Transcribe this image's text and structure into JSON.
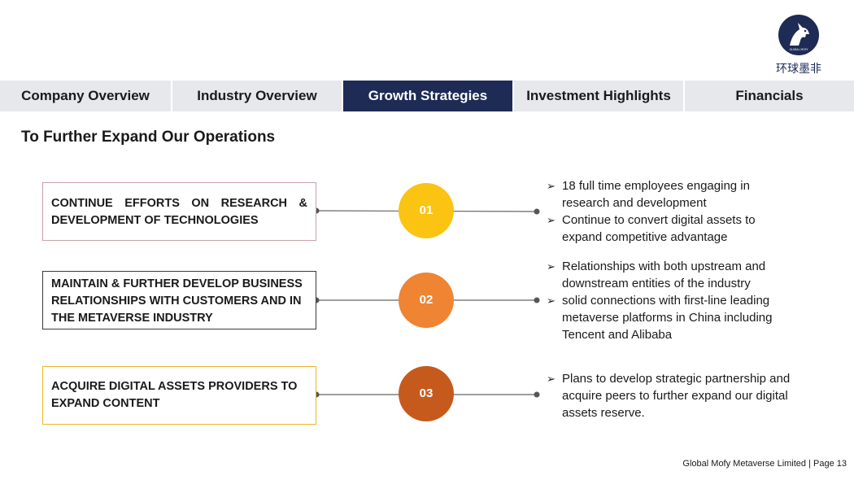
{
  "logo": {
    "cn_text": "环球墨非",
    "emblem_text": "GLOBAL MOFY"
  },
  "nav": {
    "tabs": [
      {
        "label": "Company Overview",
        "active": false
      },
      {
        "label": "Industry Overview",
        "active": false
      },
      {
        "label": "Growth Strategies",
        "active": true
      },
      {
        "label": "Investment Highlights",
        "active": false
      },
      {
        "label": "Financials",
        "active": false
      }
    ]
  },
  "title": "To Further Expand Our Operations",
  "strategies": [
    {
      "box_text": "CONTINUE EFFORTS ON RESEARCH & DEVELOPMENT OF TECHNOLOGIES",
      "number": "01",
      "color": "#fbc312",
      "bullets": [
        "18 full time employees engaging in research and development",
        "Continue to convert digital assets to expand competitive advantage"
      ]
    },
    {
      "box_text": "MAINTAIN & FURTHER DEVELOP BUSINESS RELATIONSHIPS WITH CUSTOMERS AND IN THE METAVERSE INDUSTRY",
      "number": "02",
      "color": "#ef8433",
      "bullets": [
        "Relationships with both upstream and downstream entities of the industry",
        "solid connections with first-line leading metaverse platforms in China including Tencent and Alibaba"
      ]
    },
    {
      "box_text": "ACQUIRE DIGITAL ASSETS PROVIDERS TO EXPAND CONTENT",
      "number": "03",
      "color": "#c65a1c",
      "bullets": [
        "Plans to develop strategic partnership and acquire peers to further expand our digital assets reserve."
      ]
    }
  ],
  "bullet_marker": "➢",
  "footer": "Global Mofy Metaverse Limited | Page 13"
}
